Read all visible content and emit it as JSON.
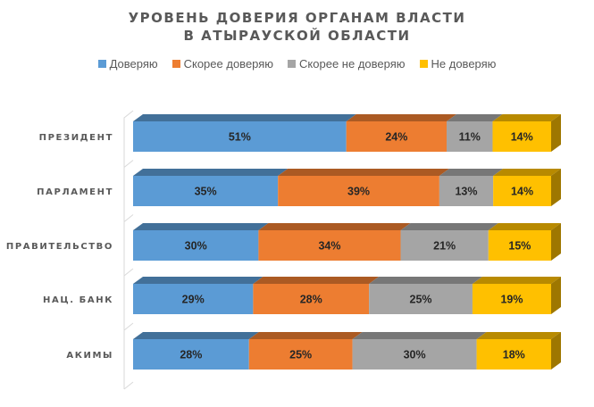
{
  "chart_data": {
    "type": "bar",
    "orientation": "horizontal",
    "stacked": "100%",
    "title_lines": [
      "УРОВЕНЬ ДОВЕРИЯ ОРГАНАМ ВЛАСТИ",
      "В АТЫРАУСКОЙ ОБЛАСТИ"
    ],
    "legend_position": "top",
    "categories": [
      "ПРЕЗИДЕНТ",
      "ПАРЛАМЕНТ",
      "ПРАВИТЕЛЬСТВО",
      "НАЦ. БАНК",
      "АКИМЫ"
    ],
    "series": [
      {
        "name": "Доверяю",
        "color": "#5b9bd5",
        "values": [
          51,
          35,
          30,
          29,
          28
        ],
        "labels": [
          "51%",
          "35%",
          "30%",
          "29%",
          "28%"
        ]
      },
      {
        "name": "Скорее доверяю",
        "color": "#ed7d31",
        "values": [
          24,
          39,
          34,
          28,
          25
        ],
        "labels": [
          "24%",
          "39%",
          "34%",
          "28%",
          "25%"
        ]
      },
      {
        "name": "Скорее не доверяю",
        "color": "#a5a5a5",
        "values": [
          11,
          13,
          21,
          25,
          30
        ],
        "labels": [
          "11%",
          "13%",
          "21%",
          "25%",
          "30%"
        ]
      },
      {
        "name": "Не доверяю",
        "color": "#ffc000",
        "values": [
          14,
          14,
          15,
          19,
          18
        ],
        "labels": [
          "14%",
          "14%",
          "15%",
          "19%",
          "18%"
        ]
      }
    ],
    "grid": false
  }
}
